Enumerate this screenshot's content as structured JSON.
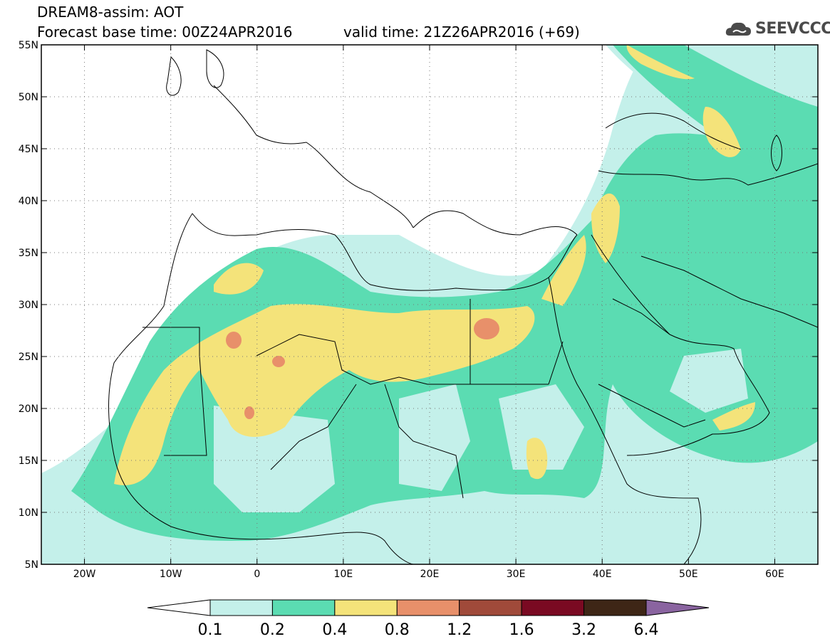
{
  "header": {
    "line1": "DREAM8-assim: AOT",
    "line2_left": "Forecast base time: 00Z24APR2016",
    "line2_right": "valid time: 21Z26APR2016 (+69)"
  },
  "logo": {
    "text": "SEEVCCC",
    "icon": "cloud-logo-icon"
  },
  "map": {
    "lon_range": [
      -25,
      65
    ],
    "lat_range": [
      5,
      55
    ],
    "lon_ticks": [
      {
        "v": -20,
        "label": "20W"
      },
      {
        "v": -10,
        "label": "10W"
      },
      {
        "v": 0,
        "label": "0"
      },
      {
        "v": 10,
        "label": "10E"
      },
      {
        "v": 20,
        "label": "20E"
      },
      {
        "v": 30,
        "label": "30E"
      },
      {
        "v": 40,
        "label": "40E"
      },
      {
        "v": 50,
        "label": "50E"
      },
      {
        "v": 60,
        "label": "60E"
      }
    ],
    "lat_ticks": [
      {
        "v": 55,
        "label": "55N"
      },
      {
        "v": 50,
        "label": "50N"
      },
      {
        "v": 45,
        "label": "45N"
      },
      {
        "v": 40,
        "label": "40N"
      },
      {
        "v": 35,
        "label": "35N"
      },
      {
        "v": 30,
        "label": "30N"
      },
      {
        "v": 25,
        "label": "25N"
      },
      {
        "v": 20,
        "label": "20N"
      },
      {
        "v": 15,
        "label": "15N"
      },
      {
        "v": 10,
        "label": "10N"
      },
      {
        "v": 5,
        "label": "5N"
      }
    ],
    "grid": "dotted"
  },
  "colorbar": {
    "levels": [
      "0.1",
      "0.2",
      "0.4",
      "0.8",
      "1.2",
      "1.6",
      "3.2",
      "6.4"
    ],
    "colors": [
      "#ffffff",
      "#c4f0ea",
      "#5bdcb2",
      "#f4e37a",
      "#e8906a",
      "#a04a3a",
      "#7a0a22",
      "#3e2616",
      "#8a64a0"
    ]
  }
}
